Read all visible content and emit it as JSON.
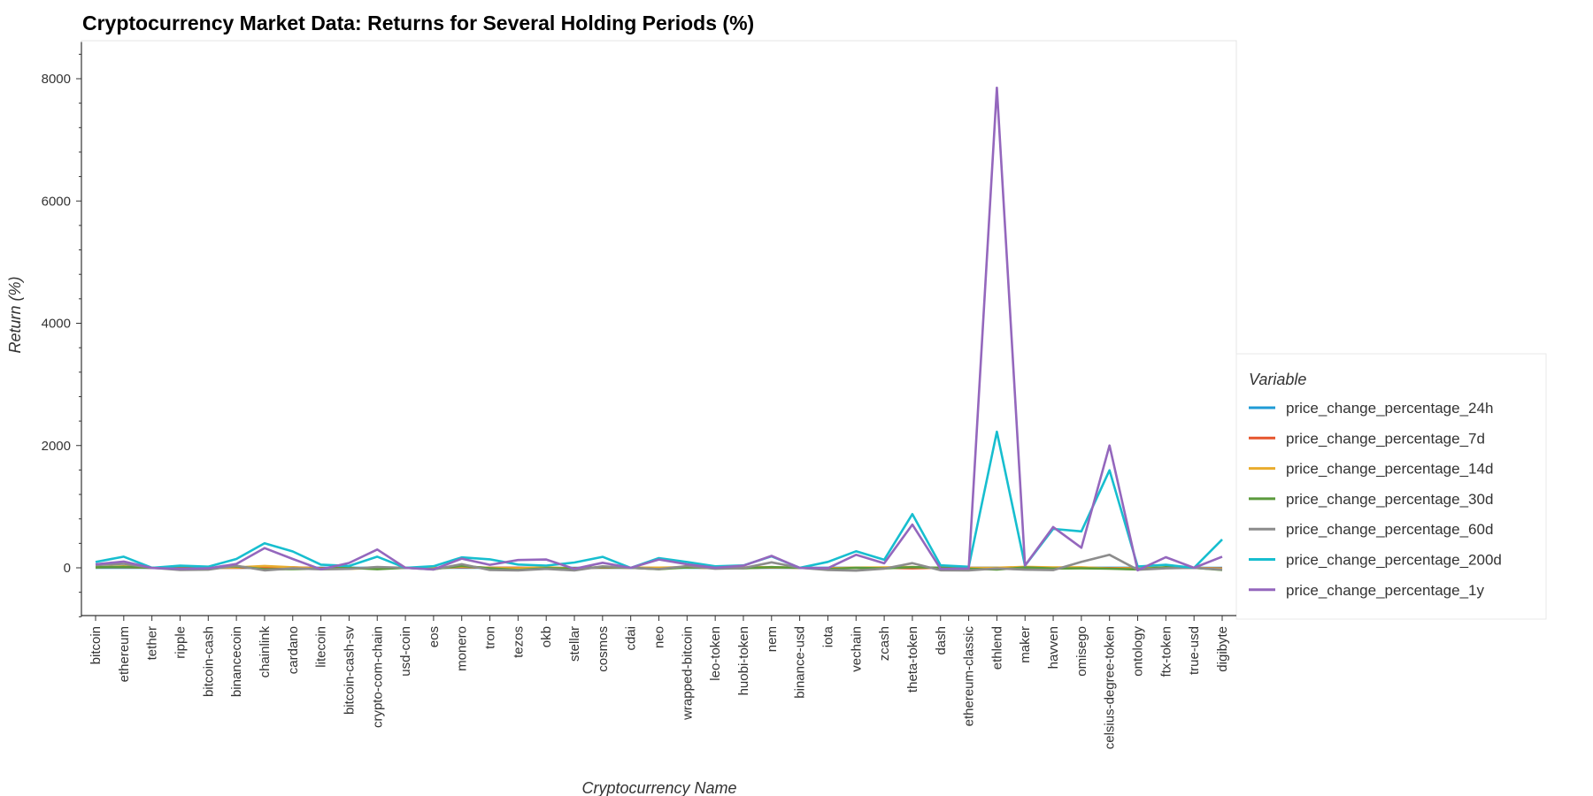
{
  "chart_data": {
    "type": "line",
    "title": "Cryptocurrency Market Data: Returns for Several Holding Periods (%)",
    "xlabel": "Cryptocurrency Name",
    "ylabel": "Return (%)",
    "ylim": [
      -800,
      8600
    ],
    "yticks": [
      0,
      2000,
      4000,
      6000,
      8000
    ],
    "grid": false,
    "legend_title": "Variable",
    "legend_position": "right",
    "categories": [
      "bitcoin",
      "ethereum",
      "tether",
      "ripple",
      "bitcoin-cash",
      "binancecoin",
      "chainlink",
      "cardano",
      "litecoin",
      "bitcoin-cash-sv",
      "crypto-com-chain",
      "usd-coin",
      "eos",
      "monero",
      "tron",
      "tezos",
      "okb",
      "stellar",
      "cosmos",
      "cdai",
      "neo",
      "wrapped-bitcoin",
      "leo-token",
      "huobi-token",
      "nem",
      "binance-usd",
      "iota",
      "vechain",
      "zcash",
      "theta-token",
      "dash",
      "ethereum-classic",
      "ethlend",
      "maker",
      "havven",
      "omisego",
      "celsius-degree-token",
      "ontology",
      "ftx-token",
      "true-usd",
      "digibyte"
    ],
    "series": [
      {
        "name": "price_change_percentage_24h",
        "color": "#1f9bd6",
        "values": [
          1,
          0,
          0,
          0,
          2,
          2,
          -1,
          0,
          1,
          1,
          -2,
          0,
          -1,
          1,
          1,
          -1,
          0,
          -1,
          0,
          0,
          -1,
          1,
          -1,
          -1,
          0,
          0,
          1,
          -1,
          0,
          -1,
          -1,
          -1,
          3,
          2,
          -1,
          -1,
          1,
          0,
          1,
          0,
          0
        ]
      },
      {
        "name": "price_change_percentage_7d",
        "color": "#e6552c",
        "values": [
          7,
          10,
          0,
          -8,
          -1,
          1,
          5,
          8,
          -6,
          -5,
          -8,
          0,
          -4,
          12,
          1,
          2,
          -3,
          -6,
          4,
          0,
          2,
          7,
          -3,
          -2,
          4,
          0,
          -6,
          1,
          2,
          -9,
          2,
          -2,
          -4,
          -5,
          3,
          -1,
          -5,
          -6,
          1,
          0,
          -10
        ]
      },
      {
        "name": "price_change_percentage_14d",
        "color": "#e9ac2d",
        "values": [
          7,
          25,
          0,
          -14,
          -5,
          7,
          31,
          9,
          -15,
          -17,
          -2,
          0,
          -11,
          21,
          -2,
          -8,
          10,
          -16,
          15,
          1,
          3,
          8,
          -4,
          6,
          11,
          0,
          -11,
          3,
          6,
          13,
          -9,
          -5,
          1,
          16,
          6,
          8,
          -12,
          -8,
          6,
          0,
          -17
        ]
      },
      {
        "name": "price_change_percentage_30d",
        "color": "#5b9a3c",
        "values": [
          8,
          16,
          0,
          -15,
          -5,
          25,
          -24,
          -20,
          -14,
          2,
          -23,
          0,
          -21,
          33,
          -9,
          -34,
          -6,
          -12,
          12,
          1,
          -23,
          9,
          -1,
          -8,
          11,
          0,
          -21,
          2,
          -10,
          11,
          -2,
          -14,
          -29,
          6,
          -12,
          -8,
          -15,
          -26,
          10,
          0,
          -36
        ]
      },
      {
        "name": "price_change_percentage_60d",
        "color": "#8c8c8c",
        "values": [
          44,
          65,
          0,
          -35,
          -31,
          35,
          -42,
          -8,
          -24,
          -17,
          14,
          0,
          -27,
          60,
          -36,
          -42,
          -17,
          -43,
          24,
          0,
          -22,
          29,
          -16,
          -4,
          90,
          0,
          -35,
          -46,
          -15,
          76,
          -40,
          -44,
          -10,
          -31,
          -37,
          97,
          212,
          -32,
          -8,
          0,
          -30
        ]
      },
      {
        "name": "price_change_percentage_200d",
        "color": "#17becf",
        "values": [
          96,
          183,
          0,
          35,
          19,
          145,
          401,
          268,
          52,
          31,
          182,
          0,
          26,
          170,
          139,
          54,
          36,
          87,
          180,
          -2,
          159,
          96,
          24,
          39,
          188,
          0,
          97,
          270,
          131,
          878,
          40,
          17,
          2227,
          36,
          636,
          596,
          1596,
          21,
          49,
          0,
          464
        ]
      },
      {
        "name": "price_change_percentage_1y",
        "color": "#9467bd",
        "values": [
          58,
          102,
          -3,
          -18,
          -9,
          64,
          322,
          144,
          -24,
          80,
          300,
          0,
          -26,
          150,
          49,
          127,
          136,
          -18,
          82,
          0,
          136,
          58,
          2,
          35,
          196,
          -1,
          -6,
          213,
          74,
          708,
          -17,
          -12,
          7852,
          38,
          667,
          329,
          2001,
          -41,
          174,
          0,
          183
        ]
      }
    ]
  }
}
